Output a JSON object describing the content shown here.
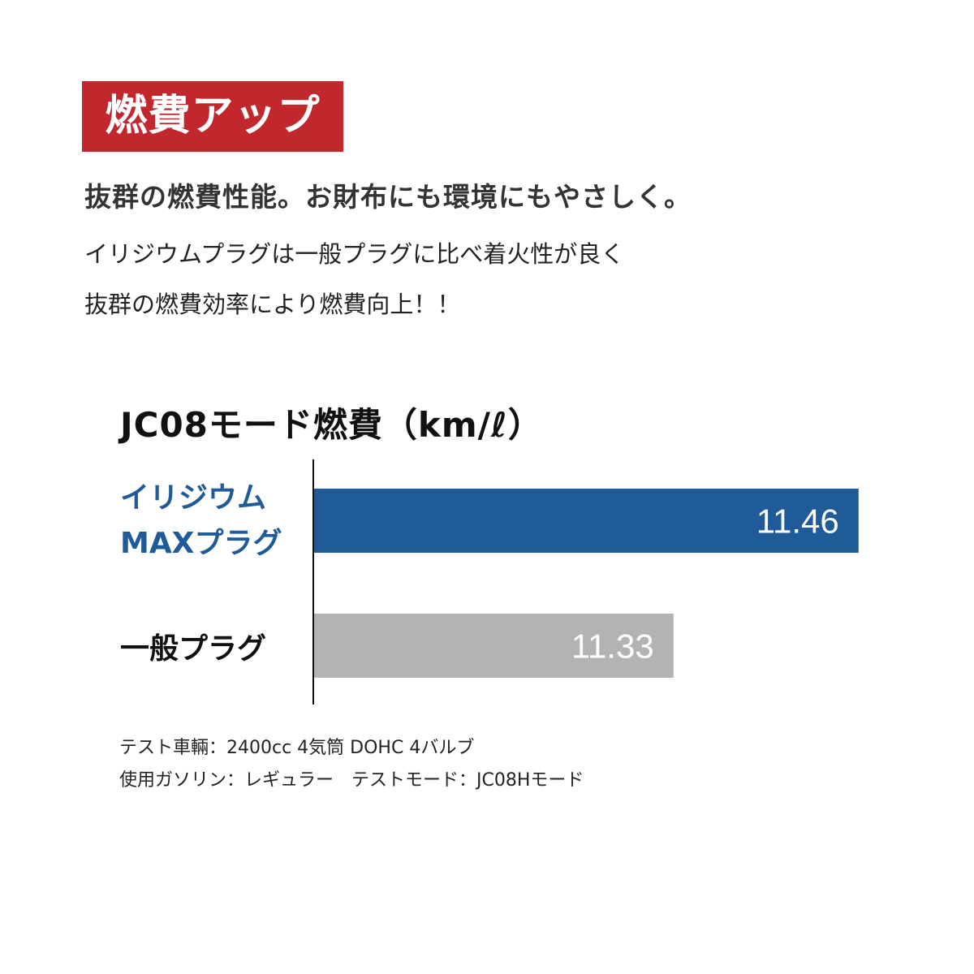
{
  "badge": {
    "label": "燃費アップ",
    "color": "#c1272d"
  },
  "headline": "抜群の燃費性能。お財布にも環境にもやさしく。",
  "body_lines": [
    "イリジウムプラグは一般プラグに比べ着火性が良く",
    "抜群の燃費効率により燃費向上！！"
  ],
  "chart_data": {
    "type": "bar",
    "orientation": "horizontal",
    "title": "JC08モード燃費（km/ℓ）",
    "categories": [
      "イリジウムMAXプラグ",
      "一般プラグ"
    ],
    "category_label_lines": [
      [
        "イリジウム",
        "MAXプラグ"
      ],
      [
        "一般プラグ"
      ]
    ],
    "values": [
      11.46,
      11.33
    ],
    "data_labels": [
      "11.46",
      "11.33"
    ],
    "colors": [
      "#1f5a99",
      "#b3b3b3"
    ],
    "category_label_colors": [
      "#1f5a99",
      "#111111"
    ],
    "xlim": [
      11.077,
      11.5
    ],
    "grid": false
  },
  "notes": [
    "テスト車輛：2400cc 4気筒 DOHC 4バルブ",
    "使用ガソリン：レギュラー　テストモード：JC08Hモード"
  ]
}
